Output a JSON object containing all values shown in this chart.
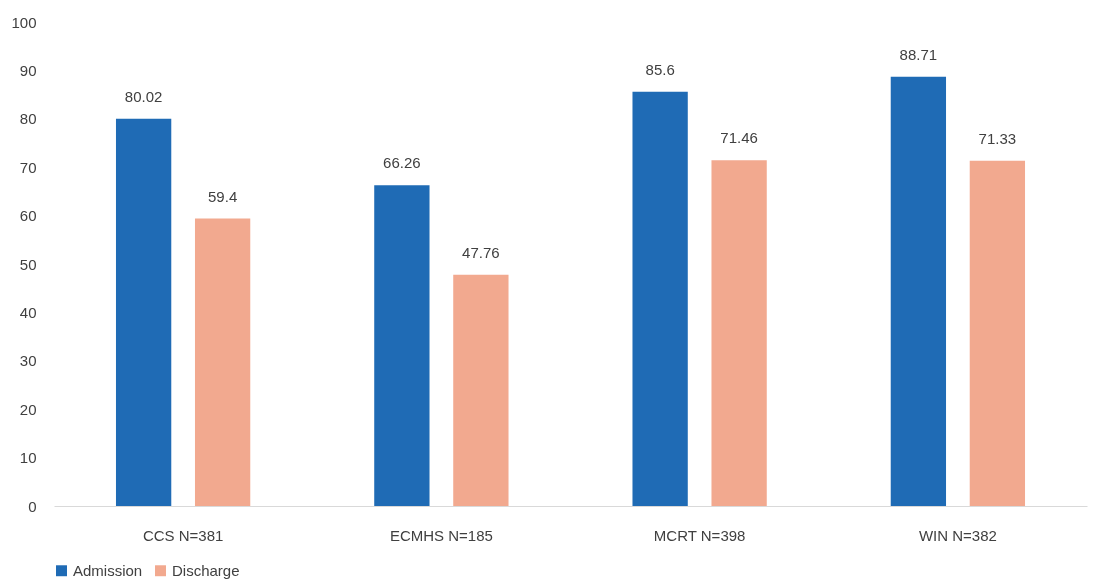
{
  "chart_data": {
    "type": "bar",
    "categories": [
      "CCS N=381",
      "ECMHS N=185",
      "MCRT N=398",
      "WIN N=382"
    ],
    "series": [
      {
        "name": "Admission",
        "color": "#1f6bb5",
        "values": [
          80.02,
          66.26,
          85.6,
          88.71
        ]
      },
      {
        "name": "Discharge",
        "color": "#f2a98f",
        "values": [
          59.4,
          47.76,
          71.46,
          71.33
        ]
      }
    ],
    "ylim": [
      0,
      100
    ],
    "yticks": [
      0,
      10,
      20,
      30,
      40,
      50,
      60,
      70,
      80,
      90,
      100
    ],
    "grid": false,
    "legend": "bottom",
    "data_labels": true
  }
}
